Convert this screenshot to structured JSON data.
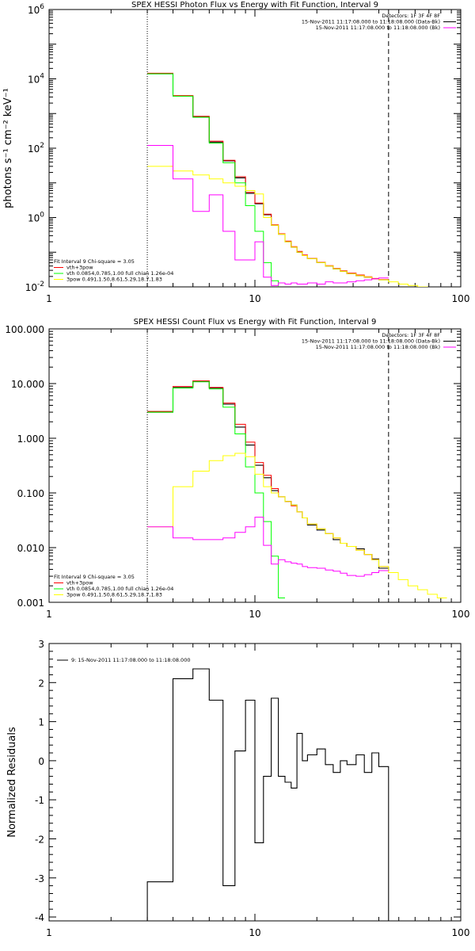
{
  "chart_data": [
    {
      "type": "line",
      "title": "SPEX HESSI Photon Flux vs Energy with Fit Function, Interval 9",
      "ylabel": "photons s⁻¹ cm⁻² keV⁻¹",
      "xlabel": "",
      "xscale": "log",
      "yscale": "log",
      "xlim": [
        1,
        100
      ],
      "ylim": [
        0.01,
        1000000
      ],
      "xticks": [
        "1",
        "10",
        "100"
      ],
      "yticks": [
        {
          "base": "10",
          "exp": "-2",
          "value": 0.01
        },
        {
          "base": "10",
          "exp": "0",
          "value": 1
        },
        {
          "base": "10",
          "exp": "2",
          "value": 100
        },
        {
          "base": "10",
          "exp": "4",
          "value": 10000
        },
        {
          "base": "10",
          "exp": "6",
          "value": 1000000
        }
      ],
      "vlines": [
        {
          "x": 3.0,
          "style": "dotted"
        },
        {
          "x": 44.6,
          "style": "dashed"
        }
      ],
      "legend_topright": [
        {
          "text": "Detectors: 1F 3F 4F 8F",
          "color": "#000000",
          "line": false
        },
        {
          "text": "15-Nov-2011 11:17:08.000 to 11:18:08.000 (Data-Bk)",
          "color": "#000000",
          "line": true
        },
        {
          "text": "15-Nov-2011 11:17:08.000 to 11:18:08.000 (Bk)",
          "color": "#ff00ff",
          "line": true
        }
      ],
      "legend_bottomleft": [
        {
          "text": "Fit Interval 9   Chi-square = 3.05",
          "color": "#000000",
          "line": false
        },
        {
          "text": "vth+3pow",
          "color": "#ff0000",
          "line": true
        },
        {
          "text": "vth 0.0854,0.785,1.00  full chian 1.26e-04",
          "color": "#00ff00",
          "line": true
        },
        {
          "text": "3pow 0.491,1.50,8.61,5.29,18.7,1.83",
          "color": "#ffff00",
          "line": true
        }
      ],
      "edges": [
        3,
        4,
        5,
        6,
        7,
        8,
        9,
        10,
        11,
        12,
        13,
        14,
        15,
        16,
        17,
        18,
        20,
        22,
        24,
        26,
        28,
        31,
        34,
        37,
        40,
        44.6
      ],
      "series": [
        {
          "name": "Data-Bk",
          "color": "#000000",
          "x_start": 3,
          "x_end": 44.6,
          "values": [
            14000,
            3200,
            800,
            150,
            43,
            14,
            5,
            2.5,
            1.2,
            0.6,
            0.33,
            0.2,
            0.14,
            0.1,
            0.08,
            0.065,
            0.05,
            0.04,
            0.033,
            0.028,
            0.024,
            0.021,
            0.019,
            0.017,
            0.016
          ]
        },
        {
          "name": "vth+3pow",
          "color": "#ff0000",
          "x_start": 3,
          "x_end": 44.6,
          "values": [
            14500,
            3300,
            830,
            160,
            45,
            15,
            5.3,
            2.6,
            1.25,
            0.62,
            0.34,
            0.21,
            0.145,
            0.105,
            0.083,
            0.066,
            0.051,
            0.041,
            0.034,
            0.029,
            0.025,
            0.022,
            0.0195,
            0.0175,
            0.0162
          ]
        },
        {
          "name": "vth",
          "color": "#00ff00",
          "x_start": 3,
          "x_end": 13.8,
          "values": [
            14000,
            3150,
            780,
            140,
            38,
            10,
            2.2,
            0.4,
            0.05,
            0.015,
            0.0075
          ]
        },
        {
          "name": "3pow",
          "color": "#ffff00",
          "x_start": 3,
          "x_end": 70,
          "values": [
            30,
            22,
            17,
            13,
            10,
            8,
            6,
            4.8,
            1,
            0.6,
            0.33,
            0.2,
            0.14,
            0.1,
            0.08,
            0.065,
            0.05,
            0.04,
            0.033,
            0.028,
            0.024,
            0.021,
            0.019,
            0.017,
            0.016,
            0.014,
            0.012,
            0.011,
            0.01,
            0.009
          ]
        },
        {
          "name": "Bk",
          "color": "#ff00ff",
          "x_start": 3,
          "x_end": 44.6,
          "values": [
            120,
            13,
            1.5,
            4.5,
            0.4,
            0.06,
            0.06,
            0.2,
            0.019,
            0.011,
            0.013,
            0.012,
            0.013,
            0.012,
            0.012,
            0.013,
            0.012,
            0.014,
            0.013,
            0.013,
            0.014,
            0.015,
            0.016,
            0.017,
            0.018
          ]
        }
      ]
    },
    {
      "type": "line",
      "title": "SPEX HESSI Count Flux vs Energy with Fit Function, Interval 9",
      "xscale": "log",
      "yscale": "log",
      "xlim": [
        1,
        100
      ],
      "ylim": [
        0.001,
        100
      ],
      "xticks": [
        "1",
        "10",
        "100"
      ],
      "yticks": [
        {
          "text": "0.001",
          "value": 0.001
        },
        {
          "text": "0.010",
          "value": 0.01
        },
        {
          "text": "0.100",
          "value": 0.1
        },
        {
          "text": "1.000",
          "value": 1
        },
        {
          "text": "10.000",
          "value": 10
        },
        {
          "text": "100.000",
          "value": 100
        }
      ],
      "vlines": [
        {
          "x": 3.0,
          "style": "dotted"
        },
        {
          "x": 44.6,
          "style": "dashed"
        }
      ],
      "legend_topright": [
        {
          "text": "Detectors: 1F 3F 4F 8F",
          "color": "#000000",
          "line": false
        },
        {
          "text": "15-Nov-2011 11:17:08.000 to 11:18:08.000 (Data-Bk)",
          "color": "#000000",
          "line": true
        },
        {
          "text": "15-Nov-2011 11:17:08.000 to 11:18:08.000 (Bk)",
          "color": "#ff00ff",
          "line": true
        }
      ],
      "legend_bottomleft": [
        {
          "text": "Fit Interval 9   Chi-square = 3.05",
          "color": "#000000",
          "line": false
        },
        {
          "text": "vth+3pow",
          "color": "#ff0000",
          "line": true
        },
        {
          "text": "vth 0.0854,0.785,1.00  full chian 1.26e-04",
          "color": "#00ff00",
          "line": true
        },
        {
          "text": "3pow 0.491,1.50,8.61,5.29,18.7,1.83",
          "color": "#ffff00",
          "line": true
        }
      ],
      "edges": [
        3,
        4,
        5,
        6,
        7,
        8,
        9,
        10,
        11,
        12,
        13,
        14,
        15,
        16,
        17,
        18,
        20,
        22,
        24,
        26,
        28,
        31,
        34,
        37,
        40,
        44.6
      ],
      "series": [
        {
          "name": "Data-Bk",
          "color": "#000000",
          "x_start": 3,
          "x_end": 44.6,
          "values": [
            3.0,
            8.5,
            11,
            8.3,
            4.2,
            1.6,
            0.75,
            0.32,
            0.19,
            0.11,
            0.085,
            0.07,
            0.06,
            0.045,
            0.035,
            0.026,
            0.021,
            0.018,
            0.014,
            0.012,
            0.0105,
            0.0095,
            0.0075,
            0.0062,
            0.0042
          ]
        },
        {
          "name": "vth+3pow",
          "color": "#ff0000",
          "x_start": 3,
          "x_end": 44.6,
          "values": [
            3.1,
            8.8,
            11.2,
            8.5,
            4.4,
            1.8,
            0.85,
            0.36,
            0.21,
            0.12,
            0.085,
            0.07,
            0.058,
            0.045,
            0.035,
            0.027,
            0.022,
            0.018,
            0.015,
            0.012,
            0.0105,
            0.009,
            0.0075,
            0.006,
            0.0045
          ]
        },
        {
          "name": "vth",
          "color": "#00ff00",
          "x_start": 3,
          "x_end": 13.8,
          "values": [
            3.0,
            8.3,
            10.8,
            8.0,
            3.7,
            1.2,
            0.3,
            0.1,
            0.03,
            0.007,
            0.0012
          ]
        },
        {
          "name": "3pow",
          "color": "#ffff00",
          "x_start": 3,
          "x_end": 100,
          "values": [
            0.024,
            0.13,
            0.25,
            0.39,
            0.48,
            0.53,
            0.46,
            0.22,
            0.13,
            0.1,
            0.085,
            0.07,
            0.06,
            0.045,
            0.035,
            0.027,
            0.022,
            0.018,
            0.015,
            0.012,
            0.0105,
            0.009,
            0.0075,
            0.006,
            0.0045,
            0.0035,
            0.0026,
            0.002,
            0.0017,
            0.0014,
            0.0012
          ]
        },
        {
          "name": "Bk",
          "color": "#ff00ff",
          "x_start": 3,
          "x_end": 44.6,
          "values": [
            0.024,
            0.015,
            0.014,
            0.014,
            0.015,
            0.019,
            0.024,
            0.036,
            0.011,
            0.005,
            0.006,
            0.0055,
            0.0052,
            0.005,
            0.0045,
            0.0043,
            0.0042,
            0.0039,
            0.0037,
            0.0034,
            0.0031,
            0.003,
            0.0032,
            0.0035,
            0.0038
          ]
        }
      ]
    },
    {
      "type": "line",
      "title": "",
      "ylabel": "Normalized Residuals",
      "xscale": "log",
      "yscale": "linear",
      "xlim": [
        1,
        100
      ],
      "ylim": [
        -4.1,
        3
      ],
      "xticks": [
        "1",
        "10",
        "100"
      ],
      "yticks": [
        {
          "text": "3",
          "value": 3
        },
        {
          "text": "2",
          "value": 2
        },
        {
          "text": "1",
          "value": 1
        },
        {
          "text": "0",
          "value": 0
        },
        {
          "text": "-1",
          "value": -1
        },
        {
          "text": "-2",
          "value": -2
        },
        {
          "text": "-3",
          "value": -3
        },
        {
          "text": "-4",
          "value": -4
        }
      ],
      "legend_topleft": [
        {
          "text": "9: 15-Nov-2011 11:17:08.000 to 11:18:08.000",
          "color": "#000000",
          "line": true
        }
      ],
      "edges": [
        3,
        4,
        5,
        6,
        7,
        8,
        9,
        10,
        11,
        12,
        13,
        14,
        15,
        16,
        17,
        18,
        20,
        22,
        24,
        26,
        28,
        31,
        34,
        37,
        40,
        44.6
      ],
      "series": [
        {
          "name": "9: 15-Nov-2011 11:17:08.000 to 11:18:08.000",
          "color": "#000000",
          "x_start": 3,
          "x_end": 44.6,
          "values": [
            -3.1,
            2.1,
            2.35,
            1.55,
            -3.2,
            0.25,
            1.55,
            -2.1,
            -0.4,
            1.6,
            -0.4,
            -0.55,
            -0.7,
            0.7,
            0.0,
            0.15,
            0.3,
            -0.1,
            -0.3,
            0.0,
            -0.1,
            0.15,
            -0.3,
            0.2,
            -0.15
          ]
        }
      ]
    }
  ]
}
